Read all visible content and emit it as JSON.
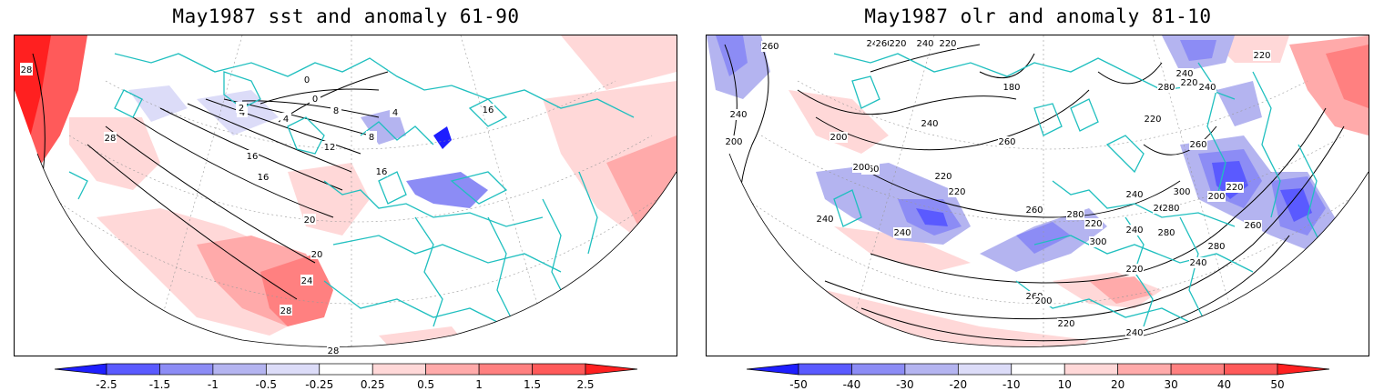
{
  "panels": [
    {
      "title": "May1987 sst and anomaly 61-90",
      "colorbar": {
        "labels": [
          "-2.5",
          "-1.5",
          "-1",
          "-0.5",
          "-0.25",
          "0.25",
          "0.5",
          "1",
          "1.5",
          "2.5"
        ],
        "colors": [
          "#1e1eff",
          "#5a5aff",
          "#8c8cf5",
          "#b4b4f0",
          "#dcdcf8",
          "#ffffff",
          "#ffd8d8",
          "#ffaaaa",
          "#ff8080",
          "#ff5a5a",
          "#ff2020"
        ]
      },
      "contour_labels": [
        "28",
        "28",
        "20",
        "16",
        "12",
        "8",
        "4",
        "0",
        "0",
        "4",
        "16",
        "20",
        "24",
        "28",
        "28",
        "16",
        "8",
        "16",
        "4",
        "2"
      ]
    },
    {
      "title": "May1987 olr and anomaly 81-10",
      "colorbar": {
        "labels": [
          "-50",
          "-40",
          "-30",
          "-20",
          "-10",
          "10",
          "20",
          "30",
          "40",
          "50"
        ],
        "colors": [
          "#1e1eff",
          "#5a5aff",
          "#8c8cf5",
          "#b4b4f0",
          "#dcdcf8",
          "#ffffff",
          "#ffd8d8",
          "#ffaaaa",
          "#ff8080",
          "#ff5a5a",
          "#ff2020"
        ]
      },
      "contour_labels": [
        "260",
        "240",
        "240",
        "200",
        "260",
        "240",
        "200",
        "180",
        "220",
        "220",
        "220",
        "240",
        "260",
        "220",
        "200",
        "240",
        "240",
        "260",
        "280",
        "300",
        "220",
        "240",
        "260",
        "240",
        "220",
        "280",
        "280",
        "240",
        "260",
        "200",
        "220",
        "240",
        "260",
        "280",
        "300",
        "260",
        "280",
        "220",
        "220",
        "240",
        "240",
        "200",
        "220",
        "260",
        "220"
      ]
    }
  ]
}
